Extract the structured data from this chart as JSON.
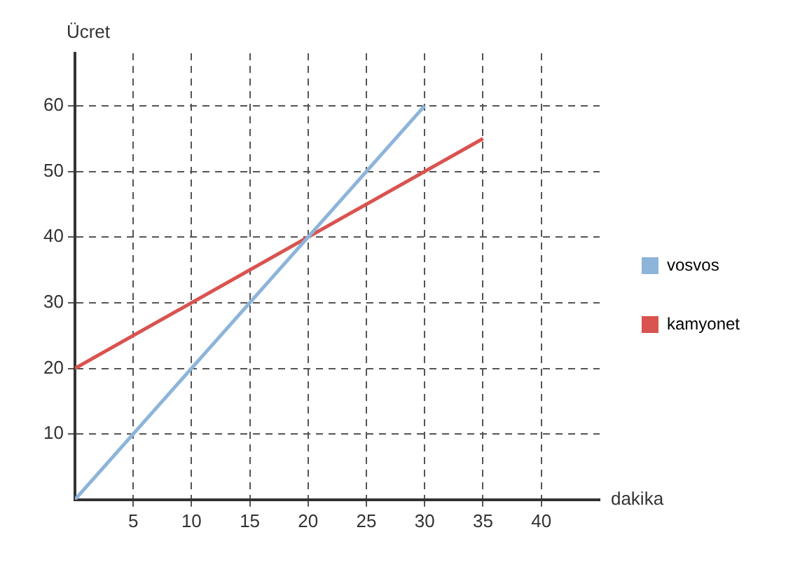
{
  "chart_data": {
    "type": "line",
    "xlabel": "dakika",
    "ylabel": "Ücret",
    "series": [
      {
        "name": "vosvos",
        "color": "#8db4d9",
        "x": [
          0,
          30
        ],
        "values": [
          0,
          60
        ]
      },
      {
        "name": "kamyonet",
        "color": "#d9534f",
        "x": [
          0,
          35
        ],
        "values": [
          20,
          55
        ]
      }
    ],
    "xlim": [
      0,
      45
    ],
    "xticks": [
      5,
      10,
      15,
      20,
      25,
      30,
      35,
      40
    ],
    "ylim": [
      0,
      68
    ],
    "yticks": [
      10,
      20,
      30,
      40,
      50,
      60
    ],
    "grid": true,
    "legend": "right",
    "marker": "none",
    "line_style": "solid"
  }
}
